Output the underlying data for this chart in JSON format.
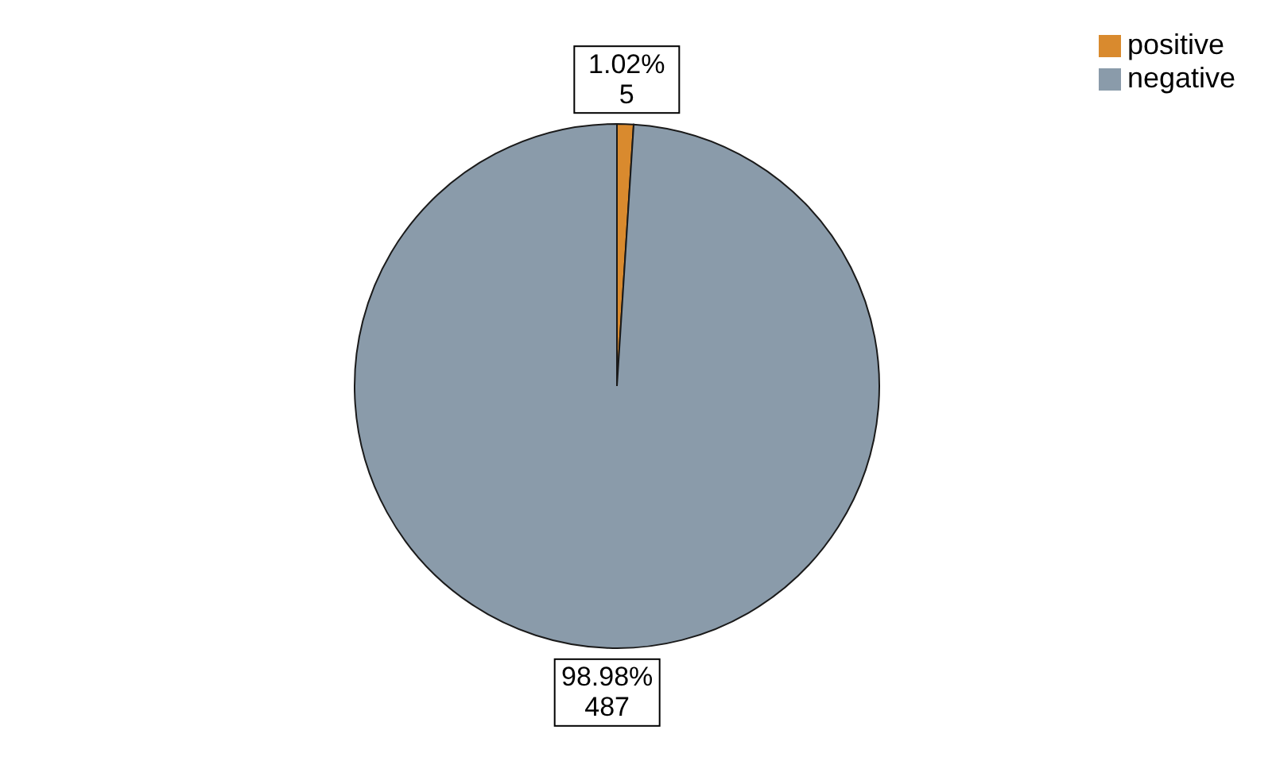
{
  "chart_data": {
    "type": "pie",
    "categories": [
      "positive",
      "negative"
    ],
    "values": [
      5,
      487
    ],
    "colors": [
      "#d98a2e",
      "#8a9baa"
    ],
    "value_labels": [
      "1.02%\n5",
      "98.98%\n487"
    ],
    "legend": "top right"
  }
}
